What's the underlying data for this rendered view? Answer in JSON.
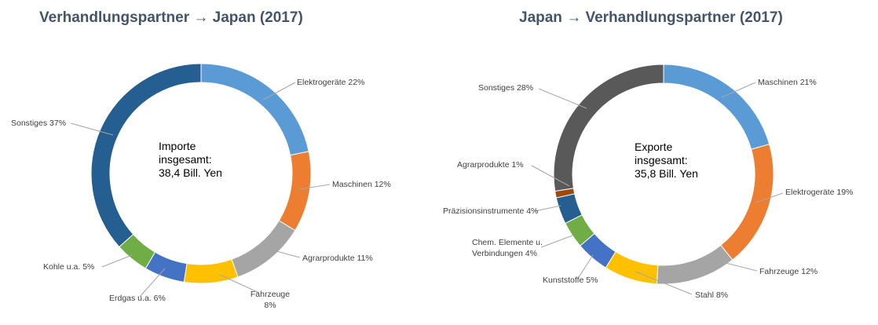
{
  "chart_data": [
    {
      "type": "pie",
      "title": "Verhandlungspartner  → Japan  (2017)",
      "center_text": [
        "Importe",
        "insgesamt:",
        "38,4 Bill. Yen"
      ],
      "slices": [
        {
          "label": "Elektrogeräte 22%",
          "value": 22,
          "color": "#5B9BD5"
        },
        {
          "label": "Maschinen 12%",
          "value": 12,
          "color": "#ED7D31"
        },
        {
          "label": "Agrarprodukte 11%",
          "value": 11,
          "color": "#A5A5A5"
        },
        {
          "label": "Fahrzeuge\n8%",
          "value": 8,
          "color": "#FFC000"
        },
        {
          "label": "Erdgas u.a. 6%",
          "value": 6,
          "color": "#4472C4"
        },
        {
          "label": "Kohle u.a.  5%",
          "value": 5,
          "color": "#70AD47"
        },
        {
          "label": "Sonstiges 37%",
          "value": 37,
          "color": "#255E91"
        }
      ]
    },
    {
      "type": "pie",
      "title": "Japan → Verhandlungspartner  (2017)",
      "center_text": [
        "Exporte",
        "insgesamt:",
        "35,8 Bill. Yen"
      ],
      "slices": [
        {
          "label": "Maschinen 21%",
          "value": 21,
          "color": "#5B9BD5"
        },
        {
          "label": "Elektrogeräte 19%",
          "value": 19,
          "color": "#ED7D31"
        },
        {
          "label": "Fahrzeuge  12%",
          "value": 12,
          "color": "#A5A5A5"
        },
        {
          "label": "Stahl 8%",
          "value": 8,
          "color": "#FFC000"
        },
        {
          "label": "Kunststoffe 5%",
          "value": 5,
          "color": "#4472C4"
        },
        {
          "label": "Chem. Elemente u.\nVerbindungen 4%",
          "value": 4,
          "color": "#70AD47"
        },
        {
          "label": "Präzisionsinstrumente 4%",
          "value": 4,
          "color": "#255E91"
        },
        {
          "label": "Agrarprodukte 1%",
          "value": 1,
          "color": "#9E480E"
        },
        {
          "label": "Sonstiges 28%",
          "value": 28,
          "color": "#595959"
        }
      ]
    }
  ]
}
